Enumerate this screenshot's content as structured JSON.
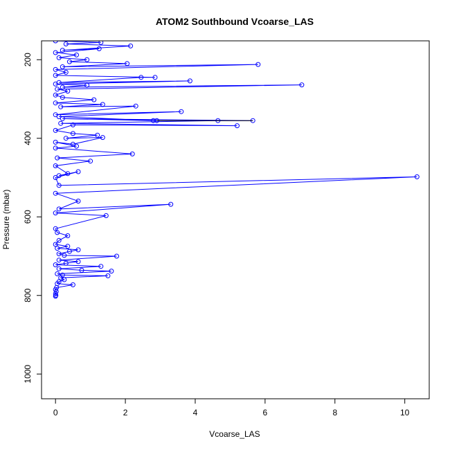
{
  "chart_data": {
    "type": "line",
    "title": "ATOM2 Southbound Vcoarse_LAS",
    "xlabel": "Vcoarse_LAS",
    "ylabel": "Pressure (mbar)",
    "xlim": [
      -0.4,
      10.7
    ],
    "ylim": [
      1063,
      152
    ],
    "y_reversed": true,
    "xticks": [
      0,
      2,
      4,
      6,
      8,
      10
    ],
    "yticks": [
      200,
      400,
      600,
      800,
      1000
    ],
    "grid": false,
    "legend": "none",
    "series": [
      {
        "color": "#0000ff",
        "marker": "open-circle",
        "points": [
          [
            0.0,
            802
          ],
          [
            0.01,
            800
          ],
          [
            0.0,
            796
          ],
          [
            0.02,
            790
          ],
          [
            0.0,
            785
          ],
          [
            0.03,
            780
          ],
          [
            0.5,
            773
          ],
          [
            0.05,
            770
          ],
          [
            0.1,
            765
          ],
          [
            0.25,
            760
          ],
          [
            0.15,
            755
          ],
          [
            1.5,
            750
          ],
          [
            0.2,
            748
          ],
          [
            0.05,
            745
          ],
          [
            1.6,
            738
          ],
          [
            0.75,
            736
          ],
          [
            0.1,
            732
          ],
          [
            1.3,
            726
          ],
          [
            0.0,
            722
          ],
          [
            0.3,
            718
          ],
          [
            0.65,
            714
          ],
          [
            0.1,
            710
          ],
          [
            1.75,
            700
          ],
          [
            0.25,
            698
          ],
          [
            0.1,
            694
          ],
          [
            0.4,
            688
          ],
          [
            0.65,
            684
          ],
          [
            0.05,
            680
          ],
          [
            0.35,
            675
          ],
          [
            0.0,
            670
          ],
          [
            0.1,
            660
          ],
          [
            0.35,
            648
          ],
          [
            0.05,
            640
          ],
          [
            0.0,
            630
          ],
          [
            1.45,
            597
          ],
          [
            0.0,
            590
          ],
          [
            3.3,
            568
          ],
          [
            0.1,
            580
          ],
          [
            0.65,
            560
          ],
          [
            0.0,
            540
          ],
          [
            10.35,
            498
          ],
          [
            0.1,
            520
          ],
          [
            0.0,
            500
          ],
          [
            0.65,
            485
          ],
          [
            0.1,
            495
          ],
          [
            0.35,
            490
          ],
          [
            0.0,
            470
          ],
          [
            1.0,
            458
          ],
          [
            0.05,
            450
          ],
          [
            2.2,
            440
          ],
          [
            0.0,
            425
          ],
          [
            0.6,
            420
          ],
          [
            0.0,
            410
          ],
          [
            0.5,
            415
          ],
          [
            1.35,
            398
          ],
          [
            0.3,
            400
          ],
          [
            1.2,
            392
          ],
          [
            0.5,
            388
          ],
          [
            0.0,
            380
          ],
          [
            0.5,
            366
          ],
          [
            5.2,
            368
          ],
          [
            0.15,
            362
          ],
          [
            4.65,
            355
          ],
          [
            5.65,
            355
          ],
          [
            0.2,
            350
          ],
          [
            2.8,
            355
          ],
          [
            2.9,
            355
          ],
          [
            0.1,
            345
          ],
          [
            3.6,
            332
          ],
          [
            0.0,
            340
          ],
          [
            2.3,
            318
          ],
          [
            0.15,
            320
          ],
          [
            1.35,
            314
          ],
          [
            0.0,
            310
          ],
          [
            1.1,
            302
          ],
          [
            0.2,
            296
          ],
          [
            0.0,
            290
          ],
          [
            0.35,
            280
          ],
          [
            0.05,
            275
          ],
          [
            7.05,
            264
          ],
          [
            0.2,
            270
          ],
          [
            0.9,
            265
          ],
          [
            0.0,
            262
          ],
          [
            3.85,
            254
          ],
          [
            0.1,
            258
          ],
          [
            2.45,
            245
          ],
          [
            2.85,
            245
          ],
          [
            0.0,
            240
          ],
          [
            0.3,
            232
          ],
          [
            0.0,
            225
          ],
          [
            5.8,
            212
          ],
          [
            0.2,
            218
          ],
          [
            2.05,
            210
          ],
          [
            0.4,
            205
          ],
          [
            0.9,
            200
          ],
          [
            0.1,
            195
          ],
          [
            0.6,
            188
          ],
          [
            0.0,
            182
          ],
          [
            1.25,
            172
          ],
          [
            0.2,
            176
          ],
          [
            2.15,
            165
          ],
          [
            0.3,
            160
          ],
          [
            1.3,
            156
          ],
          [
            0.0,
            152
          ]
        ]
      }
    ]
  }
}
